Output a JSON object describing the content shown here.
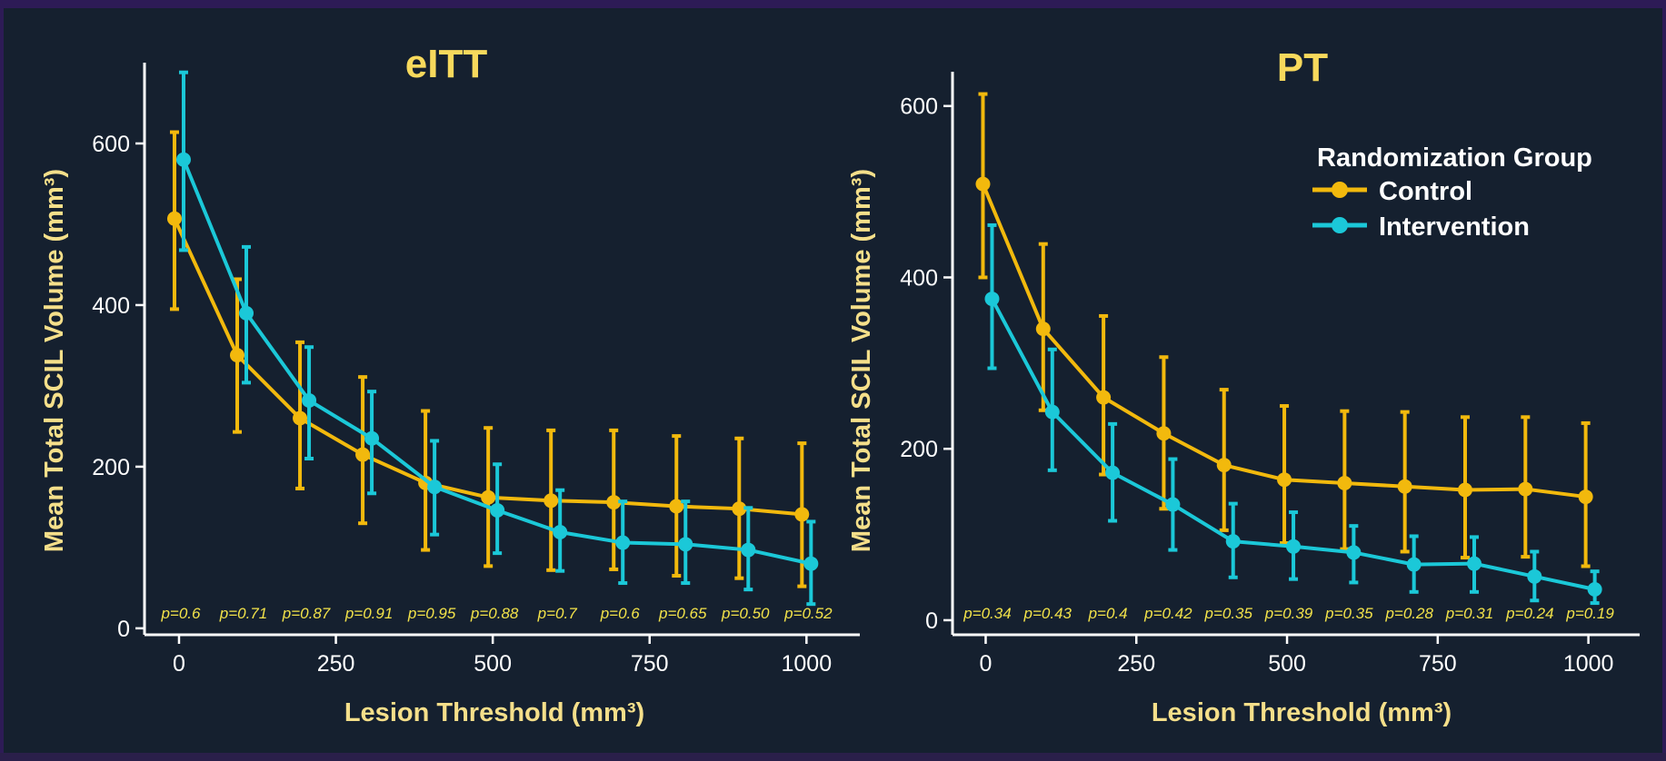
{
  "chart_data": [
    {
      "type": "line",
      "title": "eITT",
      "xlabel": "Lesion Threshold (mm³)",
      "ylabel": "Mean Total SCIL Volume (mm³)",
      "xlim": [
        -55,
        1085
      ],
      "ylim": [
        -8,
        700
      ],
      "xticks": [
        0,
        250,
        500,
        750,
        1000
      ],
      "yticks": [
        0,
        200,
        400,
        600
      ],
      "x": [
        0,
        100,
        200,
        300,
        400,
        500,
        600,
        700,
        800,
        900,
        1000
      ],
      "p_values": [
        "p=0.6",
        "p=0.71",
        "p=0.87",
        "p=0.91",
        "p=0.95",
        "p=0.88",
        "p=0.7",
        "p=0.6",
        "p=0.65",
        "p=0.50",
        "p=0.52"
      ],
      "series": [
        {
          "name": "Control",
          "color": "#f2b90d",
          "values": [
            507,
            338,
            260,
            215,
            180,
            162,
            158,
            156,
            151,
            148,
            141
          ],
          "lower": [
            395,
            243,
            173,
            130,
            97,
            77,
            72,
            73,
            65,
            62,
            52
          ],
          "upper": [
            614,
            432,
            354,
            311,
            269,
            248,
            245,
            245,
            238,
            235,
            229
          ]
        },
        {
          "name": "Intervention",
          "color": "#1bc8d8",
          "values": [
            580,
            390,
            282,
            235,
            175,
            146,
            119,
            106,
            104,
            97,
            80
          ],
          "lower": [
            468,
            304,
            210,
            167,
            116,
            93,
            71,
            56,
            56,
            48,
            30
          ],
          "upper": [
            688,
            472,
            348,
            293,
            232,
            203,
            171,
            157,
            157,
            149,
            132
          ]
        }
      ]
    },
    {
      "type": "line",
      "title": "PT",
      "xlabel": "Lesion Threshold (mm³)",
      "ylabel": "Mean Total SCIL Volume (mm³)",
      "xlim": [
        -55,
        1085
      ],
      "ylim": [
        -17,
        640
      ],
      "xticks": [
        0,
        250,
        500,
        750,
        1000
      ],
      "yticks": [
        0,
        200,
        400,
        600
      ],
      "x": [
        0,
        100,
        200,
        300,
        400,
        500,
        600,
        700,
        800,
        900,
        1000
      ],
      "p_values": [
        "p=0.34",
        "p=0.43",
        "p=0.4",
        "p=0.42",
        "p=0.35",
        "p=0.39",
        "p=0.35",
        "p=0.28",
        "p=0.31",
        "p=0.24",
        "p=0.19"
      ],
      "legend": {
        "title": "Randomization Group",
        "position": "top-right"
      },
      "series": [
        {
          "name": "Control",
          "color": "#f2b90d",
          "values": [
            509,
            340,
            260,
            218,
            181,
            164,
            160,
            156,
            152,
            153,
            144
          ],
          "lower": [
            400,
            245,
            170,
            130,
            105,
            90,
            83,
            80,
            73,
            74,
            63
          ],
          "upper": [
            614,
            439,
            355,
            307,
            269,
            250,
            244,
            243,
            237,
            237,
            230
          ]
        },
        {
          "name": "Intervention",
          "color": "#1bc8d8",
          "values": [
            375,
            243,
            172,
            135,
            92,
            86,
            79,
            65,
            66,
            51,
            36
          ],
          "lower": [
            294,
            175,
            116,
            82,
            50,
            48,
            44,
            33,
            33,
            23,
            20
          ],
          "upper": [
            461,
            316,
            229,
            188,
            136,
            126,
            110,
            98,
            97,
            80,
            57
          ]
        }
      ]
    }
  ]
}
